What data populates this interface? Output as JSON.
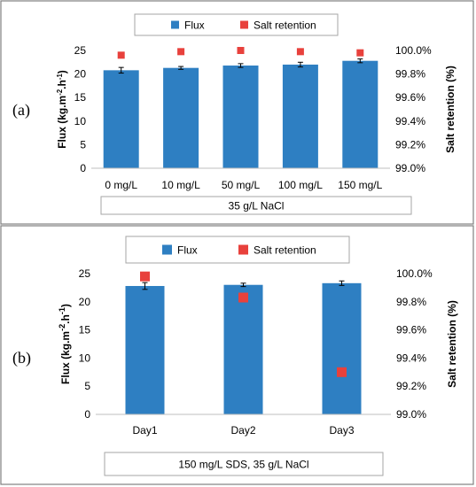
{
  "panels": [
    {
      "label": "(a)",
      "caption": "35 g/L NaCl"
    },
    {
      "label": "(b)",
      "caption": "150 mg/L SDS, 35 g/L NaCl"
    }
  ],
  "legend": {
    "flux": "Flux",
    "salt": "Salt retention"
  },
  "colors": {
    "flux": "#2e7fc2",
    "salt": "#e8413c",
    "error": "#000000",
    "border": "#808080"
  },
  "chart_data": [
    {
      "type": "bar",
      "categories": [
        "0 mg/L",
        "10 mg/L",
        "50 mg/L",
        "100 mg/L",
        "150 mg/L"
      ],
      "series": [
        {
          "name": "Flux",
          "axis": "left",
          "values": [
            20.8,
            21.3,
            21.8,
            22.0,
            22.8
          ],
          "error": [
            0.6,
            0.3,
            0.4,
            0.5,
            0.4
          ]
        },
        {
          "name": "Salt retention",
          "axis": "right",
          "kind": "scatter",
          "values": [
            99.96,
            99.99,
            100.0,
            99.99,
            99.98
          ]
        }
      ],
      "ylabel": "Flux (kg.m-2.h-1)",
      "y2label": "Salt retention (%)",
      "ylim": [
        0,
        25
      ],
      "yticks": [
        "0",
        "5",
        "10",
        "15",
        "20",
        "25"
      ],
      "y2lim": [
        99.0,
        100.0
      ],
      "y2ticks": [
        "99.0%",
        "99.2%",
        "99.4%",
        "99.6%",
        "99.8%",
        "100.0%"
      ],
      "legend_position": "top"
    },
    {
      "type": "bar",
      "categories": [
        "Day1",
        "Day2",
        "Day3"
      ],
      "series": [
        {
          "name": "Flux",
          "axis": "left",
          "values": [
            22.8,
            23.0,
            23.3
          ],
          "error": [
            0.6,
            0.3,
            0.4
          ]
        },
        {
          "name": "Salt retention",
          "axis": "right",
          "kind": "scatter",
          "values": [
            99.98,
            99.83,
            99.3
          ]
        }
      ],
      "ylabel": "Flux (kg.m-2.h-1)",
      "y2label": "Salt retention (%)",
      "ylim": [
        0,
        25
      ],
      "yticks": [
        "0",
        "5",
        "10",
        "15",
        "20",
        "25"
      ],
      "y2lim": [
        99.0,
        100.0
      ],
      "y2ticks": [
        "99.0%",
        "99.2%",
        "99.4%",
        "99.6%",
        "99.8%",
        "100.0%"
      ],
      "legend_position": "top"
    }
  ]
}
